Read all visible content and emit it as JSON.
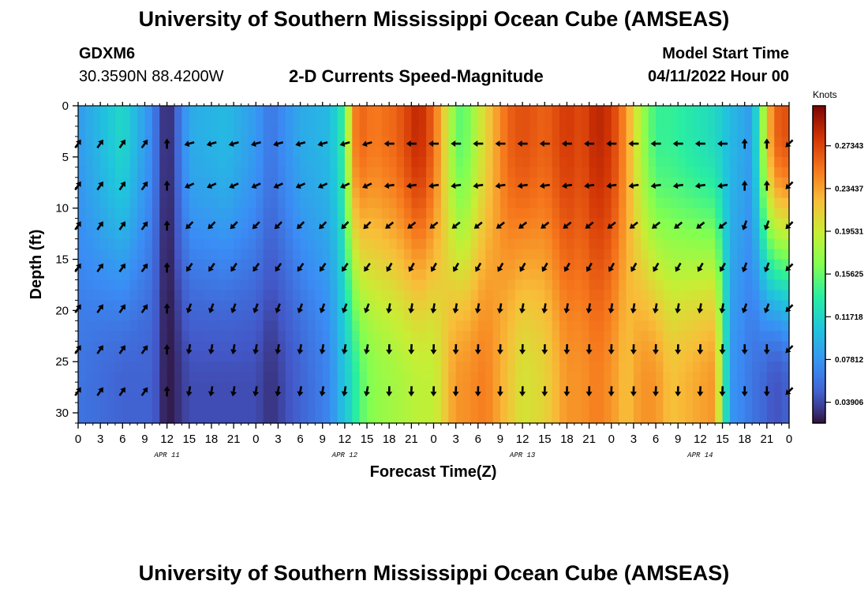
{
  "header": {
    "title": "University of Southern Mississippi Ocean Cube (AMSEAS)",
    "station": "GDXM6",
    "coords": "30.3590N  88.4200W",
    "subtitle": "2-D Currents Speed-Magnitude",
    "model_start_label": "Model Start Time",
    "model_start_value": "04/11/2022 Hour 00"
  },
  "footer": {
    "title": "University of Southern Mississippi Ocean Cube (AMSEAS)"
  },
  "chart_data": {
    "type": "heatmap",
    "title": "2-D Currents Speed-Magnitude",
    "xlabel": "Forecast Time(Z)",
    "ylabel": "Depth (ft)",
    "xlim": [
      0,
      96
    ],
    "ylim": [
      0,
      31
    ],
    "x_ticks": [
      0,
      3,
      6,
      9,
      12,
      15,
      18,
      21,
      24,
      27,
      30,
      33,
      36,
      39,
      42,
      45,
      48,
      51,
      54,
      57,
      60,
      63,
      66,
      69,
      72,
      75,
      78,
      81,
      84,
      87,
      90,
      93,
      96
    ],
    "x_tick_labels": [
      "0",
      "3",
      "6",
      "9",
      "12",
      "15",
      "18",
      "21",
      "0",
      "3",
      "6",
      "9",
      "12",
      "15",
      "18",
      "21",
      "0",
      "3",
      "6",
      "9",
      "12",
      "15",
      "18",
      "21",
      "0",
      "3",
      "6",
      "9",
      "12",
      "15",
      "18",
      "21",
      "0"
    ],
    "y_ticks": [
      0,
      5,
      10,
      15,
      20,
      25,
      30
    ],
    "y_tick_labels": [
      "0",
      "5",
      "10",
      "15",
      "20",
      "25",
      "30"
    ],
    "day_labels": [
      {
        "hour": 12,
        "text": "APR 11"
      },
      {
        "hour": 36,
        "text": "APR 12"
      },
      {
        "hour": 60,
        "text": "APR 13"
      },
      {
        "hour": 84,
        "text": "APR 14"
      }
    ],
    "colorbar": {
      "unit": "Knots",
      "min": 0.02,
      "max": 0.31,
      "ticks": [
        0.27343,
        0.23437,
        0.19531,
        0.15625,
        0.11718,
        0.07812,
        0.03906
      ],
      "tick_labels": [
        "0.27343",
        "0.23437",
        "0.19531",
        "0.15625",
        "0.11718",
        "0.07812",
        "0.03906"
      ]
    },
    "time_hours": [
      0,
      6,
      10,
      12,
      15,
      20,
      24,
      26,
      30,
      34,
      36,
      37,
      38,
      40,
      43,
      46,
      48,
      51,
      52,
      55,
      58,
      60,
      63,
      66,
      68,
      70,
      72,
      74,
      76,
      78,
      80,
      83,
      86,
      88,
      91,
      93,
      94,
      96
    ],
    "speed_at_depth_2ft": [
      0.08,
      0.12,
      0.07,
      0.02,
      0.09,
      0.1,
      0.08,
      0.06,
      0.09,
      0.1,
      0.14,
      0.24,
      0.26,
      0.25,
      0.26,
      0.29,
      0.26,
      0.16,
      0.15,
      0.21,
      0.26,
      0.27,
      0.26,
      0.28,
      0.27,
      0.29,
      0.28,
      0.24,
      0.18,
      0.14,
      0.14,
      0.13,
      0.12,
      0.1,
      0.08,
      0.21,
      0.26,
      0.27
    ],
    "speed_at_depth_28ft": [
      0.06,
      0.05,
      0.05,
      0.02,
      0.04,
      0.04,
      0.04,
      0.03,
      0.05,
      0.07,
      0.11,
      0.12,
      0.15,
      0.17,
      0.18,
      0.19,
      0.19,
      0.24,
      0.24,
      0.25,
      0.22,
      0.2,
      0.21,
      0.24,
      0.24,
      0.25,
      0.24,
      0.22,
      0.24,
      0.24,
      0.22,
      0.23,
      0.24,
      0.08,
      0.06,
      0.05,
      0.04,
      0.05
    ],
    "arrow_depths_ft": [
      3.7,
      7.8,
      11.7,
      15.8,
      19.8,
      23.8,
      27.9
    ],
    "arrow_hours": [
      0,
      3,
      6,
      9,
      12,
      15,
      18,
      21,
      24,
      27,
      30,
      33,
      36,
      39,
      42,
      45,
      48,
      51,
      54,
      57,
      60,
      63,
      66,
      69,
      72,
      75,
      78,
      81,
      84,
      87,
      90,
      93,
      96
    ],
    "arrow_direction_description": "Arrows point north-east before hour 12, north at hour 12, west / south-west between hours 13 and 40 near the surface turning south at depth, and mostly west near the surface and south at depth afterwards."
  }
}
